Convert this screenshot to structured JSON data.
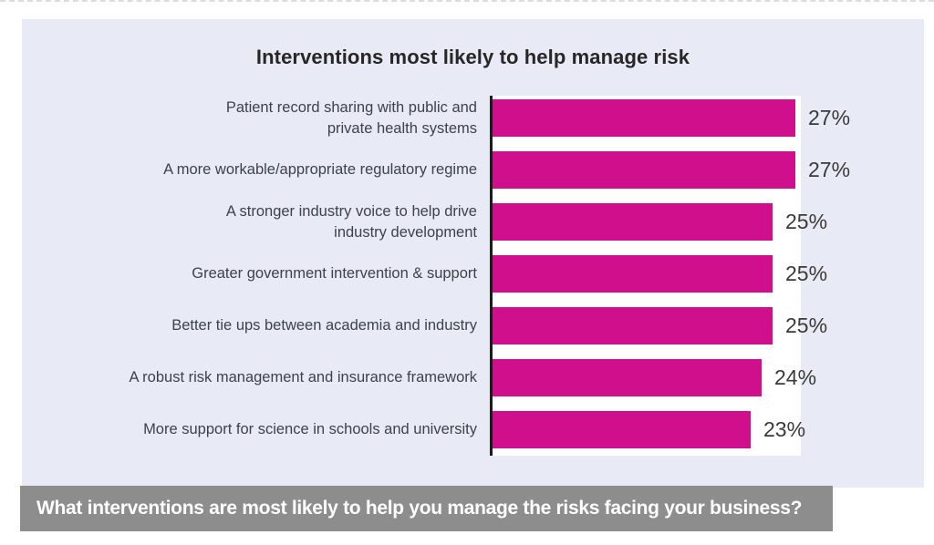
{
  "page": {
    "title": "Interventions most likely to help manage risk",
    "footer_question": "What interventions are most likely to help you manage the risks facing your business?"
  },
  "colors": {
    "bar": "#d00f8c",
    "panel_background": "#e8eaf5",
    "plot_background": "#ffffff",
    "axis_line": "#1c1c1c",
    "banner_background": "#8d8d8d",
    "banner_text": "#ffffff",
    "category_text": "#3e424b",
    "value_text": "#3a3a3a",
    "title_text": "#272727"
  },
  "chart_data": {
    "type": "bar",
    "orientation": "horizontal",
    "title": "Interventions most likely to help manage risk",
    "xlabel": "",
    "ylabel": "",
    "unit": "%",
    "xlim": [
      0,
      27.5
    ],
    "grid": false,
    "legend": false,
    "bar_color": "#d00f8c",
    "categories": [
      "Patient record sharing with public and private health systems",
      "A more workable/appropriate regulatory regime",
      "A stronger industry voice to help drive industry development",
      "Greater government intervention & support",
      "Better tie ups between academia and industry",
      "A robust risk management and insurance framework",
      "More support for science in schools and university"
    ],
    "values": [
      27,
      27,
      25,
      25,
      25,
      24,
      23
    ],
    "bars": [
      {
        "label": "Patient record sharing with public and private health systems",
        "lines": [
          "Patient record sharing with public and",
          "private health systems"
        ],
        "value": 27,
        "value_label": "27%"
      },
      {
        "label": "A more workable/appropriate regulatory regime",
        "lines": [
          "A more workable/appropriate regulatory regime"
        ],
        "value": 27,
        "value_label": "27%"
      },
      {
        "label": "A stronger industry voice to help drive industry development",
        "lines": [
          "A stronger industry voice to help drive",
          "industry development"
        ],
        "value": 25,
        "value_label": "25%"
      },
      {
        "label": "Greater government intervention & support",
        "lines": [
          "Greater government intervention & support"
        ],
        "value": 25,
        "value_label": "25%"
      },
      {
        "label": "Better tie ups between academia and industry",
        "lines": [
          "Better tie ups between academia and industry"
        ],
        "value": 25,
        "value_label": "25%"
      },
      {
        "label": "A robust risk management and insurance framework",
        "lines": [
          "A robust risk management and insurance framework"
        ],
        "value": 24,
        "value_label": "24%"
      },
      {
        "label": "More support for science in schools and university",
        "lines": [
          "More support for science in schools and university"
        ],
        "value": 23,
        "value_label": "23%"
      }
    ]
  }
}
